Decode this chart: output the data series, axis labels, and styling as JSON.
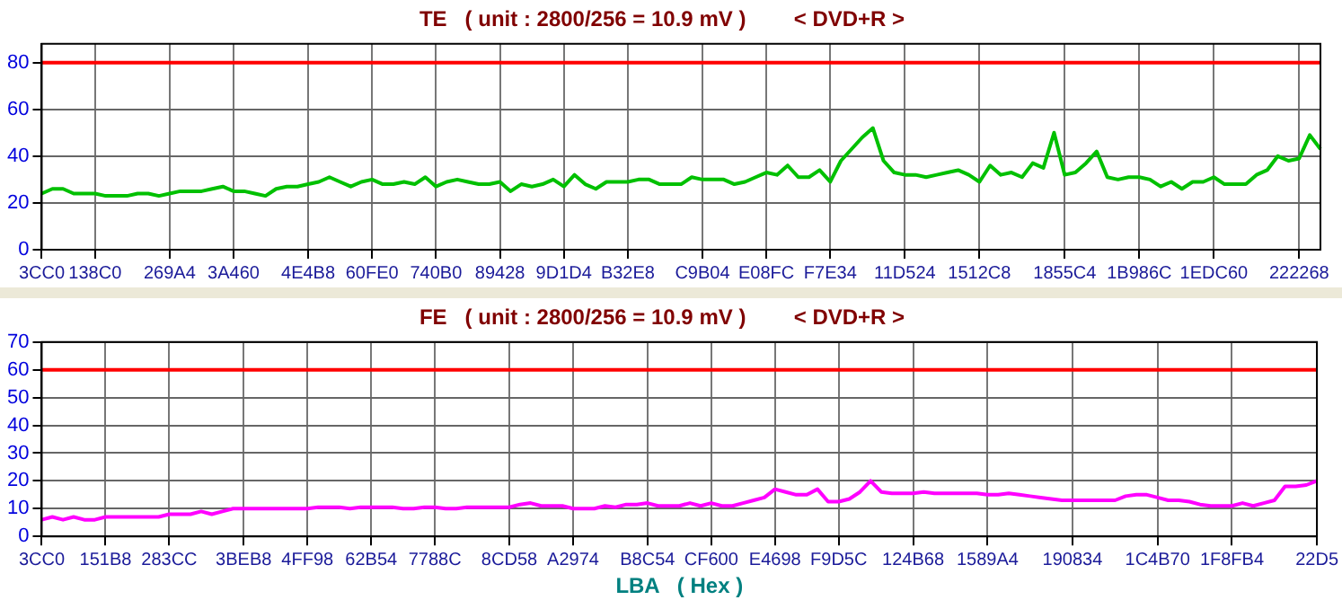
{
  "chart_data": [
    {
      "type": "line",
      "title": "TE   ( unit : 2800/256 = 10.9 mV )        < DVD+R >",
      "categories": [
        "3CC0",
        null,
        null,
        null,
        null,
        "138C0",
        null,
        null,
        null,
        null,
        null,
        null,
        "269A4",
        null,
        null,
        null,
        null,
        null,
        "3A460",
        null,
        null,
        null,
        null,
        null,
        null,
        "4E4B8",
        null,
        null,
        null,
        null,
        null,
        "60FE0",
        null,
        null,
        null,
        null,
        null,
        "740B0",
        null,
        null,
        null,
        null,
        null,
        "89428",
        null,
        null,
        null,
        null,
        null,
        "9D1D4",
        null,
        null,
        null,
        null,
        null,
        "B32E8",
        null,
        null,
        null,
        null,
        null,
        null,
        "C9B04",
        null,
        null,
        null,
        null,
        null,
        "E08FC",
        null,
        null,
        null,
        null,
        null,
        "F7E34",
        null,
        null,
        null,
        null,
        null,
        null,
        "11D524",
        null,
        null,
        null,
        null,
        null,
        null,
        "1512C8",
        null,
        null,
        null,
        null,
        null,
        null,
        null,
        "1855C4",
        null,
        null,
        null,
        null,
        null,
        null,
        "1B986C",
        null,
        null,
        null,
        null,
        null,
        null,
        "1EDC60",
        null,
        null,
        null,
        null,
        null,
        null,
        null,
        "222268",
        null,
        null
      ],
      "series": [
        {
          "color": "#00c000",
          "values": [
            24,
            26,
            26,
            24,
            24,
            24,
            23,
            23,
            23,
            24,
            24,
            23,
            24,
            25,
            25,
            25,
            26,
            27,
            25,
            25,
            24,
            23,
            26,
            27,
            27,
            28,
            29,
            31,
            29,
            27,
            29,
            30,
            28,
            28,
            29,
            28,
            31,
            27,
            29,
            30,
            29,
            28,
            28,
            29,
            25,
            28,
            27,
            28,
            30,
            27,
            32,
            28,
            26,
            29,
            29,
            29,
            30,
            30,
            28,
            28,
            28,
            31,
            30,
            30,
            30,
            28,
            29,
            31,
            33,
            32,
            36,
            31,
            31,
            34,
            29,
            38,
            43,
            48,
            52,
            38,
            33,
            32,
            32,
            31,
            32,
            33,
            34,
            32,
            29,
            36,
            32,
            33,
            31,
            37,
            35,
            50,
            32,
            33,
            37,
            42,
            31,
            30,
            31,
            31,
            30,
            27,
            29,
            26,
            29,
            29,
            31,
            28,
            28,
            28,
            32,
            34,
            40,
            38,
            39,
            49,
            43
          ]
        }
      ],
      "ylim": [
        0,
        88
      ],
      "yticks": [
        0,
        20,
        40,
        60,
        80
      ],
      "grid": true,
      "legend": false,
      "marker": "none",
      "line_style": "solid",
      "ref_lines": [
        {
          "axis": "y",
          "value": 80,
          "color": "#ff0000"
        }
      ]
    },
    {
      "type": "line",
      "title": "FE   ( unit : 2800/256 = 10.9 mV )        < DVD+R >",
      "xlabel": "LBA   ( Hex )",
      "categories": [
        "3CC0",
        null,
        null,
        null,
        null,
        null,
        "151B8",
        null,
        null,
        null,
        null,
        null,
        "283CC",
        null,
        null,
        null,
        null,
        null,
        null,
        "3BEB8",
        null,
        null,
        null,
        null,
        null,
        "4FF98",
        null,
        null,
        null,
        null,
        null,
        "62B54",
        null,
        null,
        null,
        null,
        null,
        "7788C",
        null,
        null,
        null,
        null,
        null,
        null,
        "8CD58",
        null,
        null,
        null,
        null,
        null,
        "A2974",
        null,
        null,
        null,
        null,
        null,
        null,
        "B8C54",
        null,
        null,
        null,
        null,
        null,
        "CF600",
        null,
        null,
        null,
        null,
        null,
        "E4698",
        null,
        null,
        null,
        null,
        null,
        "F9D5C",
        null,
        null,
        null,
        null,
        null,
        null,
        "124B68",
        null,
        null,
        null,
        null,
        null,
        null,
        "1589A4",
        null,
        null,
        null,
        null,
        null,
        null,
        null,
        "190834",
        null,
        null,
        null,
        null,
        null,
        null,
        null,
        "1C4B70",
        null,
        null,
        null,
        null,
        null,
        null,
        "1F8FB4",
        null,
        null,
        null,
        null,
        null,
        null,
        null,
        "22D5"
      ],
      "series": [
        {
          "color": "#ff00ff",
          "values": [
            6,
            7,
            6,
            7,
            6,
            6,
            7,
            7,
            7,
            7,
            7,
            7,
            8,
            8,
            8,
            9,
            8,
            9,
            10,
            10,
            10,
            10,
            10,
            10,
            10,
            10,
            10.5,
            10.5,
            10.5,
            10,
            10.5,
            10.5,
            10.5,
            10.5,
            10,
            10,
            10.5,
            10.5,
            10,
            10,
            10.5,
            10.5,
            10.5,
            10.5,
            10.5,
            11.5,
            12,
            11,
            11,
            11,
            10,
            10,
            10,
            11,
            10.5,
            11.5,
            11.5,
            12,
            11,
            11,
            11,
            12,
            11,
            12,
            11,
            11,
            12,
            13,
            14,
            17,
            16,
            15,
            15,
            17,
            12.5,
            12.5,
            13.5,
            16,
            20,
            16,
            15.5,
            15.5,
            15.5,
            16,
            15.5,
            15.5,
            15.5,
            15.5,
            15.5,
            15,
            15,
            15.5,
            15,
            14.5,
            14,
            13.5,
            13,
            13,
            13,
            13,
            13,
            13,
            14.5,
            15,
            15,
            14,
            13,
            13,
            12.5,
            11.5,
            11,
            11,
            11,
            12,
            11,
            12,
            13,
            18,
            18,
            18.5,
            20
          ]
        }
      ],
      "ylim": [
        0,
        70
      ],
      "yticks": [
        0,
        10,
        20,
        30,
        40,
        50,
        60,
        70
      ],
      "grid": true,
      "legend": false,
      "marker": "none",
      "line_style": "solid",
      "ref_lines": [
        {
          "axis": "y",
          "value": 60,
          "color": "#ff0000"
        }
      ]
    }
  ]
}
